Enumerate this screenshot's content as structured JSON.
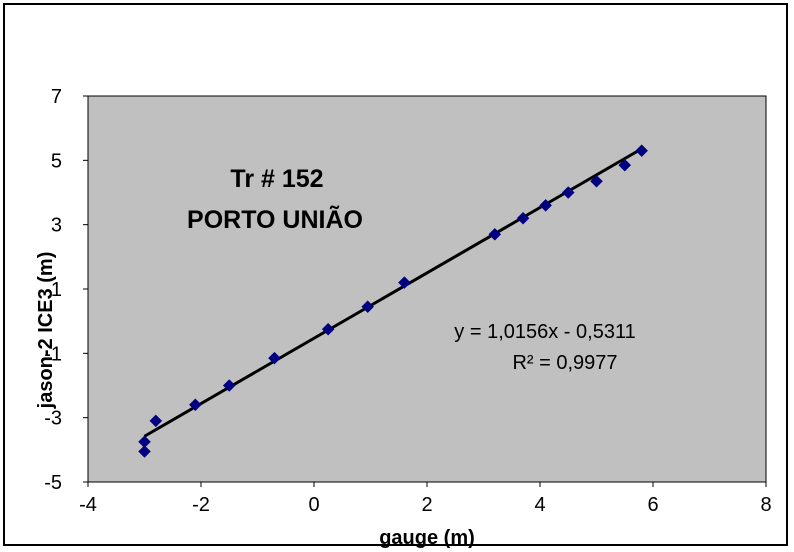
{
  "chart_data": {
    "type": "scatter",
    "title_line1": "Tr # 152",
    "title_line2": "PORTO UNIÃO",
    "xlabel": "gauge (m)",
    "ylabel": "jason-2 ICE3 (m)",
    "xlim": [
      -4,
      8
    ],
    "ylim": [
      -5,
      7
    ],
    "x_ticks": [
      "-4",
      "-2",
      "0",
      "2",
      "4",
      "6",
      "8"
    ],
    "y_ticks": [
      "-5",
      "-3",
      "-1",
      "1",
      "3",
      "5",
      "7"
    ],
    "y_tick_values": [
      -5,
      -3,
      -1,
      1,
      3,
      5,
      7
    ],
    "grid": false,
    "plot_background": "#c0c0c0",
    "marker_color": "#000080",
    "trendline_color": "#000000",
    "trendline": {
      "slope": 1.0156,
      "intercept": -0.5311,
      "x_range": [
        -3.0,
        5.8
      ]
    },
    "equation_text": "y = 1,0156x - 0,5311",
    "r2_text": "R² = 0,9977",
    "series": [
      {
        "points": [
          [
            -3.0,
            -4.05
          ],
          [
            -3.0,
            -3.75
          ],
          [
            -2.8,
            -3.1
          ],
          [
            -2.1,
            -2.6
          ],
          [
            -1.5,
            -2.0
          ],
          [
            -0.7,
            -1.15
          ],
          [
            0.25,
            -0.25
          ],
          [
            0.95,
            0.45
          ],
          [
            1.6,
            1.2
          ],
          [
            3.2,
            2.7
          ],
          [
            3.7,
            3.2
          ],
          [
            4.1,
            3.6
          ],
          [
            4.5,
            4.0
          ],
          [
            5.0,
            4.35
          ],
          [
            5.5,
            4.85
          ],
          [
            5.8,
            5.3
          ]
        ]
      }
    ]
  }
}
